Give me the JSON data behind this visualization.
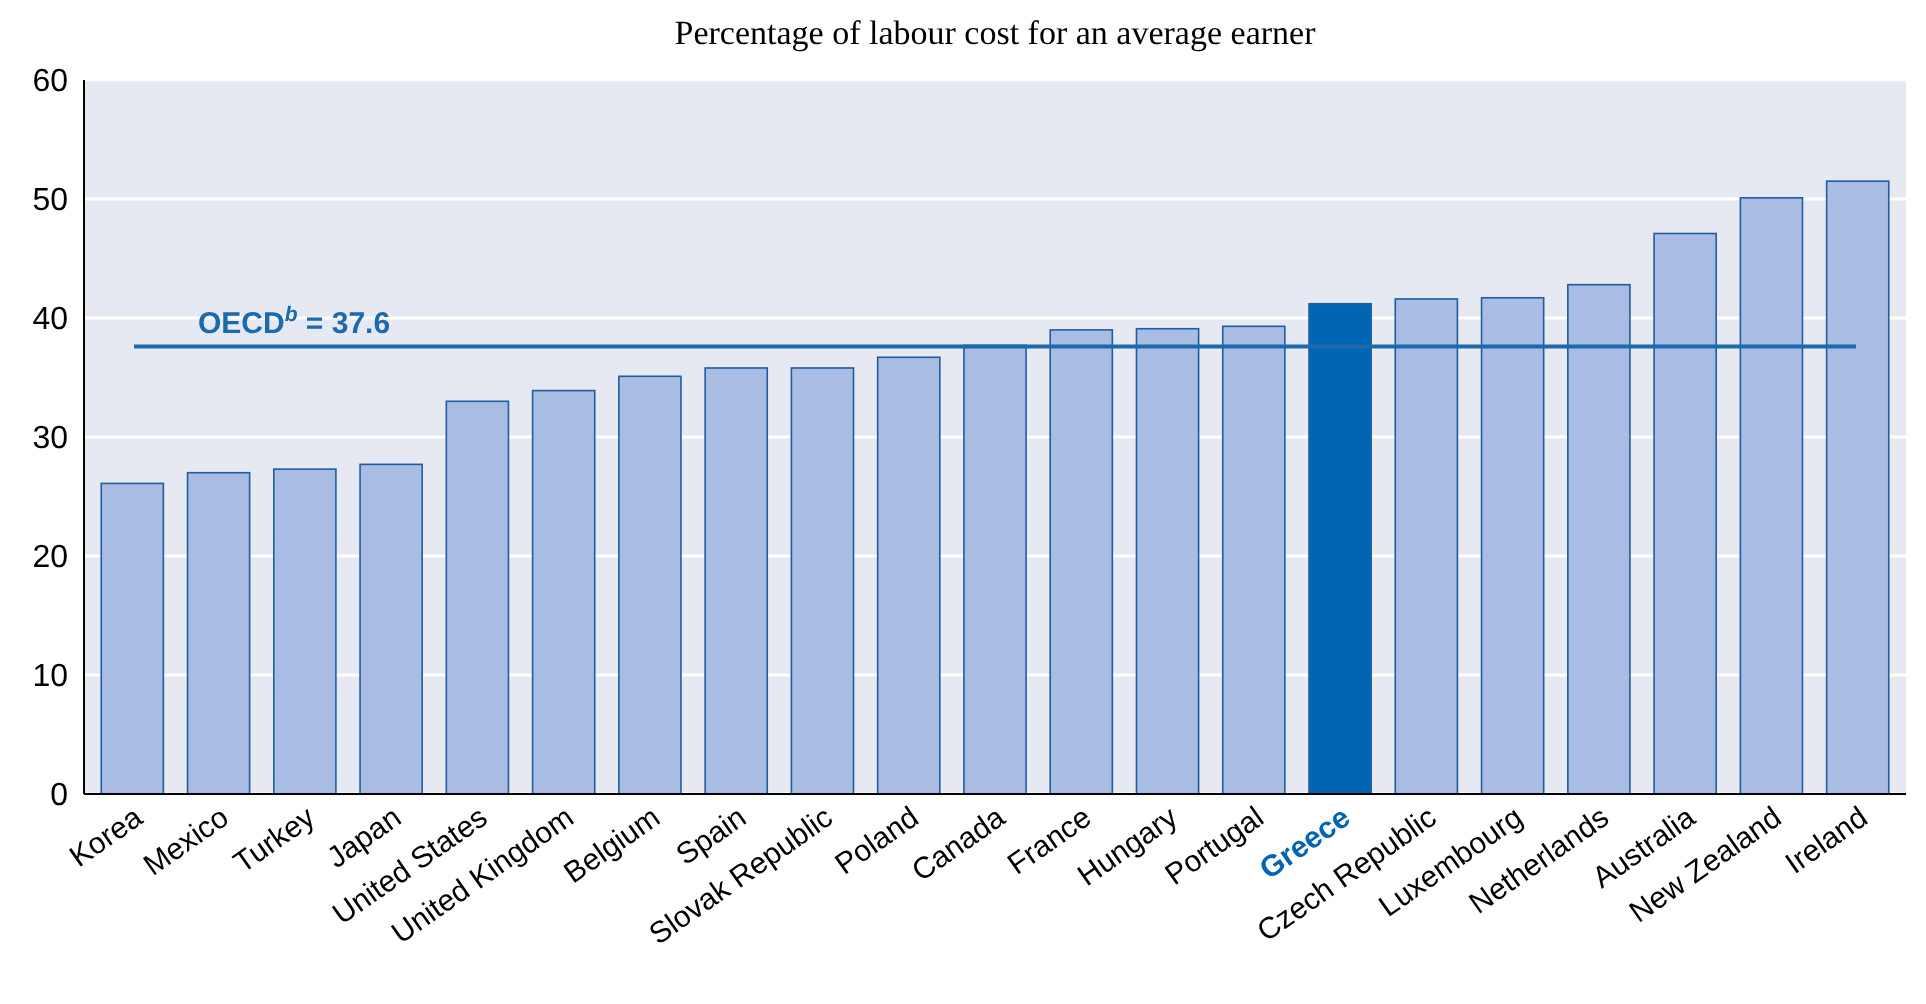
{
  "chart_data": {
    "type": "bar",
    "title": "Percentage of labour cost for an average earner",
    "categories": [
      "Korea",
      "Mexico",
      "Turkey",
      "Japan",
      "United States",
      "United Kingdom",
      "Belgium",
      "Spain",
      "Slovak Republic",
      "Poland",
      "Canada",
      "France",
      "Hungary",
      "Portugal",
      "Greece",
      "Czech Republic",
      "Luxembourg",
      "Netherlands",
      "Australia",
      "New Zealand",
      "Ireland"
    ],
    "values": [
      26.1,
      27.0,
      27.3,
      27.7,
      33.0,
      33.9,
      35.1,
      35.8,
      35.8,
      36.7,
      37.7,
      39.0,
      39.1,
      39.3,
      41.2,
      41.6,
      41.7,
      42.8,
      47.1,
      50.1,
      51.5
    ],
    "color": "#a8bce4",
    "colors": [
      "#a8bce4",
      "#a8bce4",
      "#a8bce4",
      "#a8bce4",
      "#a8bce4",
      "#a8bce4",
      "#a8bce4",
      "#a8bce4",
      "#a8bce4",
      "#a8bce4",
      "#a8bce4",
      "#a8bce4",
      "#a8bce4",
      "#a8bce4",
      "#0066b3",
      "#a8bce4",
      "#a8bce4",
      "#a8bce4",
      "#a8bce4",
      "#a8bce4",
      "#a8bce4"
    ],
    "ylim": [
      0,
      60
    ],
    "yticks": [
      0,
      10,
      20,
      30,
      40,
      50,
      60
    ],
    "grid": "y",
    "ref_lines": [
      {
        "axis": "y",
        "value": 37.6,
        "label": "OECD$^{b}$ = 37.6",
        "color": "#1a6aad"
      }
    ]
  }
}
